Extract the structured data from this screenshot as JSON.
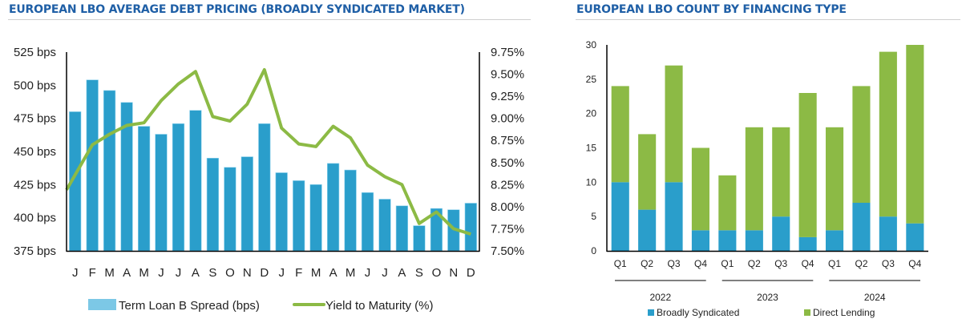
{
  "left_panel": {
    "title": "EUROPEAN LBO AVERAGE DEBT PRICING (BROADLY SYNDICATED MARKET)"
  },
  "right_panel": {
    "title": "EUROPEAN LBO COUNT BY FINANCING TYPE"
  },
  "colors": {
    "title": "#1f5fa6",
    "bar_blue": "#2a9ecb",
    "legend_blue": "#7cc8e6",
    "line_green": "#8cba45",
    "bar_green": "#8cba45"
  },
  "chart_data": [
    {
      "type": "bar",
      "title": "EUROPEAN LBO AVERAGE DEBT PRICING (BROADLY SYNDICATED MARKET)",
      "categories": [
        "J",
        "F",
        "M",
        "A",
        "M",
        "J",
        "J",
        "A",
        "S",
        "O",
        "N",
        "D",
        "J",
        "F",
        "M",
        "A",
        "M",
        "J",
        "J",
        "A",
        "S",
        "O",
        "N",
        "D"
      ],
      "series": [
        {
          "name": "Term Loan B Spread (bps)",
          "type": "bar",
          "axis": "left",
          "values": [
            480,
            504,
            496,
            487,
            469,
            463,
            471,
            481,
            445,
            438,
            446,
            471,
            434,
            428,
            425,
            441,
            436,
            419,
            414,
            409,
            394,
            407,
            406,
            411
          ]
        },
        {
          "name": "Yield to Maturity (%)",
          "type": "line",
          "axis": "right",
          "values": [
            8.19,
            8.7,
            8.82,
            8.92,
            8.95,
            9.2,
            9.39,
            9.53,
            9.02,
            8.97,
            9.16,
            9.55,
            8.89,
            8.71,
            8.68,
            8.91,
            8.78,
            8.47,
            8.34,
            8.25,
            7.81,
            7.94,
            7.75,
            7.69
          ]
        }
      ],
      "y_left": {
        "range": [
          375,
          525
        ],
        "ticks": [
          525,
          500,
          475,
          450,
          425,
          400,
          375
        ],
        "tick_labels": [
          "525 bps",
          "500 bps",
          "475 bps",
          "450 bps",
          "425 bps",
          "400 bps",
          "375 bps"
        ]
      },
      "y_right": {
        "range": [
          7.5,
          9.75
        ],
        "ticks": [
          9.75,
          9.5,
          9.25,
          9.0,
          8.75,
          8.5,
          8.25,
          8.0,
          7.75,
          7.5
        ],
        "tick_labels": [
          "9.75%",
          "9.50%",
          "9.25%",
          "9.00%",
          "8.75%",
          "8.50%",
          "8.25%",
          "8.00%",
          "7.75%",
          "7.50%"
        ]
      },
      "xlabel": "",
      "grid": false,
      "legend": {
        "placement": "bottom",
        "entries": [
          "Term Loan B Spread (bps)",
          "Yield to Maturity (%)"
        ]
      }
    },
    {
      "type": "bar",
      "stacked": true,
      "title": "EUROPEAN LBO COUNT BY FINANCING TYPE",
      "categories": [
        "Q1",
        "Q2",
        "Q3",
        "Q4",
        "Q1",
        "Q2",
        "Q3",
        "Q4",
        "Q1",
        "Q2",
        "Q3",
        "Q4"
      ],
      "groups": [
        {
          "label": "2022",
          "span": [
            0,
            3
          ]
        },
        {
          "label": "2023",
          "span": [
            4,
            7
          ]
        },
        {
          "label": "2024",
          "span": [
            8,
            11
          ]
        }
      ],
      "series": [
        {
          "name": "Broadly Syndicated",
          "values": [
            10,
            6,
            10,
            3,
            3,
            3,
            5,
            2,
            3,
            7,
            5,
            4
          ]
        },
        {
          "name": "Direct Lending",
          "values": [
            14,
            11,
            17,
            12,
            8,
            15,
            13,
            21,
            15,
            17,
            24,
            26
          ]
        }
      ],
      "totals": [
        24,
        17,
        27,
        15,
        11,
        18,
        18,
        23,
        18,
        24,
        29,
        30
      ],
      "ylim": [
        0,
        30
      ],
      "yticks": [
        0,
        5,
        10,
        15,
        20,
        25,
        30
      ],
      "xlabel": "",
      "ylabel": "",
      "grid": false,
      "legend": {
        "placement": "bottom",
        "entries": [
          "Broadly Syndicated",
          "Direct Lending"
        ]
      }
    }
  ]
}
